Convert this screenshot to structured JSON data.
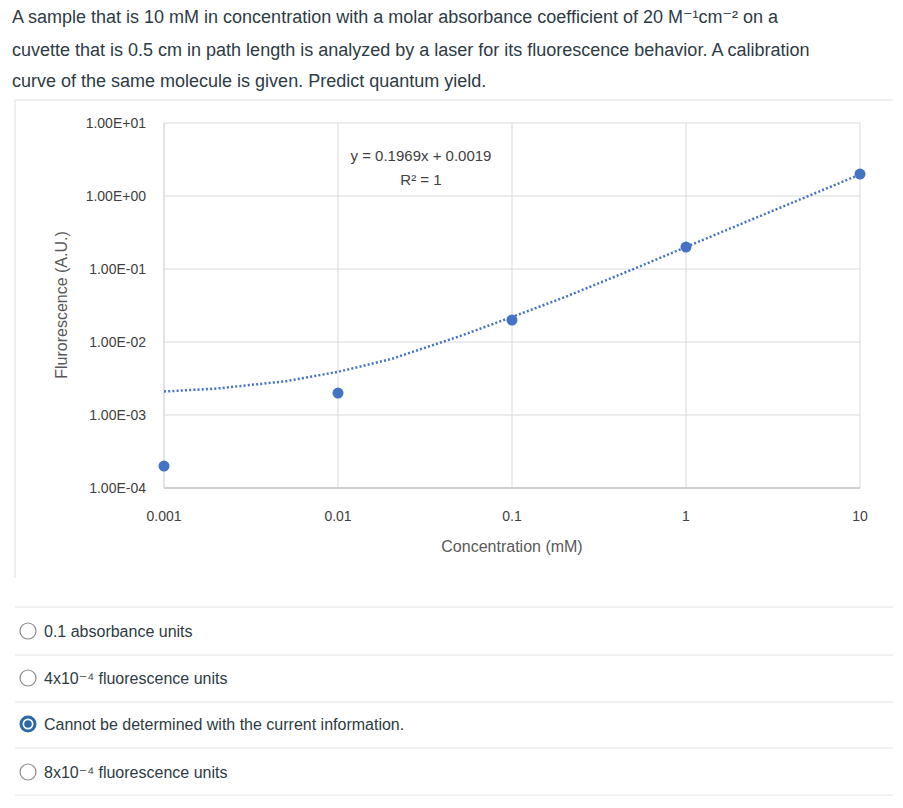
{
  "question": {
    "lines": [
      "A sample that is 10 mM in concentration with a molar absorbance coefficient of 20 M⁻¹cm⁻² on a",
      "cuvette that is 0.5 cm in path length is analyzed by a laser for its fluorescence behavior. A calibration",
      "curve of the same molecule is given. Predict quantum yield."
    ]
  },
  "chart_data": {
    "type": "scatter",
    "x_label": "Concentration (mM)",
    "y_label": "Flurorescence (A.U.)",
    "annotations": [
      "y = 0.1969x + 0.0019",
      "R² = 1"
    ],
    "log": true,
    "grid": true,
    "xlim": [
      0.001,
      10
    ],
    "ylim": [
      0.0001,
      10
    ],
    "xticks": [
      0.001,
      0.01,
      0.1,
      1,
      10
    ],
    "yticks": [
      {
        "value": 10,
        "label": "1.00E+01"
      },
      {
        "value": 1,
        "label": "1.00E+00"
      },
      {
        "value": 0.1,
        "label": "1.00E-01"
      },
      {
        "value": 0.01,
        "label": "1.00E-02"
      },
      {
        "value": 0.001,
        "label": "1.00E-03"
      },
      {
        "value": 0.0001,
        "label": "1.00E-04"
      }
    ],
    "series": [
      {
        "type": "scatter",
        "marker": "circle",
        "color": "#4472c4",
        "x": [
          0.001,
          0.01,
          0.1,
          1,
          10
        ],
        "values": [
          0.0002,
          0.002,
          0.02,
          0.2,
          2
        ]
      },
      {
        "type": "line",
        "line_style": "dotted",
        "color": "#4472c4",
        "x": [
          0.001,
          0.002,
          0.005,
          0.01,
          0.02,
          0.05,
          0.1,
          0.2,
          0.5,
          1,
          2,
          5,
          10
        ],
        "values": [
          0.0021,
          0.0023,
          0.0029,
          0.0039,
          0.0058,
          0.012,
          0.022,
          0.041,
          0.1,
          0.2,
          0.4,
          0.99,
          1.97
        ]
      }
    ]
  },
  "options": [
    {
      "text": "0.1 absorbance units",
      "selected": false
    },
    {
      "text": "4x10⁻⁴ fluorescence units",
      "selected": false
    },
    {
      "text": "Cannot be determined with the current information.",
      "selected": true
    },
    {
      "text": "8x10⁻⁴ fluorescence units",
      "selected": false
    }
  ]
}
